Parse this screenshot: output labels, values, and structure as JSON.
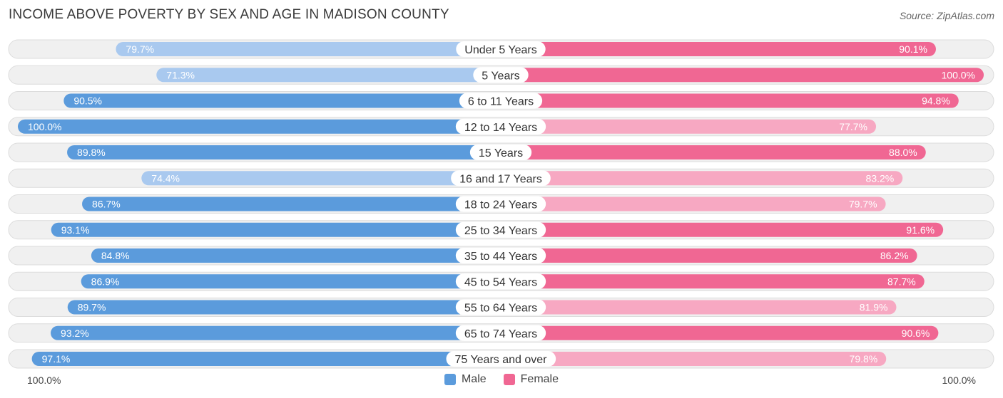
{
  "header": {
    "title": "INCOME ABOVE POVERTY BY SEX AND AGE IN MADISON COUNTY",
    "source": "Source: ZipAtlas.com"
  },
  "axis": {
    "left_label": "100.0%",
    "right_label": "100.0%"
  },
  "legend": {
    "male_label": "Male",
    "female_label": "Female"
  },
  "colors": {
    "male_strong": "#5b9bdc",
    "male_light": "#a9c9ef",
    "female_strong": "#f06793",
    "female_light": "#f7a8c2"
  },
  "chart_data": {
    "type": "bar",
    "title": "INCOME ABOVE POVERTY BY SEX AND AGE IN MADISON COUNTY",
    "orientation": "horizontal-diverging",
    "xlim": [
      0,
      100
    ],
    "categories": [
      "Under 5 Years",
      "5 Years",
      "6 to 11 Years",
      "12 to 14 Years",
      "15 Years",
      "16 and 17 Years",
      "18 to 24 Years",
      "25 to 34 Years",
      "35 to 44 Years",
      "45 to 54 Years",
      "55 to 64 Years",
      "65 to 74 Years",
      "75 Years and over"
    ],
    "series": [
      {
        "name": "Male",
        "values": [
          79.7,
          71.3,
          90.5,
          100.0,
          89.8,
          74.4,
          86.7,
          93.1,
          84.8,
          86.9,
          89.7,
          93.2,
          97.1
        ],
        "labels": [
          "79.7%",
          "71.3%",
          "90.5%",
          "100.0%",
          "89.8%",
          "74.4%",
          "86.7%",
          "93.1%",
          "84.8%",
          "86.9%",
          "89.7%",
          "93.2%",
          "97.1%"
        ]
      },
      {
        "name": "Female",
        "values": [
          90.1,
          100.0,
          94.8,
          77.7,
          88.0,
          83.2,
          79.7,
          91.6,
          86.2,
          87.7,
          81.9,
          90.6,
          79.8
        ],
        "labels": [
          "90.1%",
          "100.0%",
          "94.8%",
          "77.7%",
          "88.0%",
          "83.2%",
          "79.7%",
          "91.6%",
          "86.2%",
          "87.7%",
          "81.9%",
          "90.6%",
          "79.8%"
        ]
      }
    ]
  }
}
